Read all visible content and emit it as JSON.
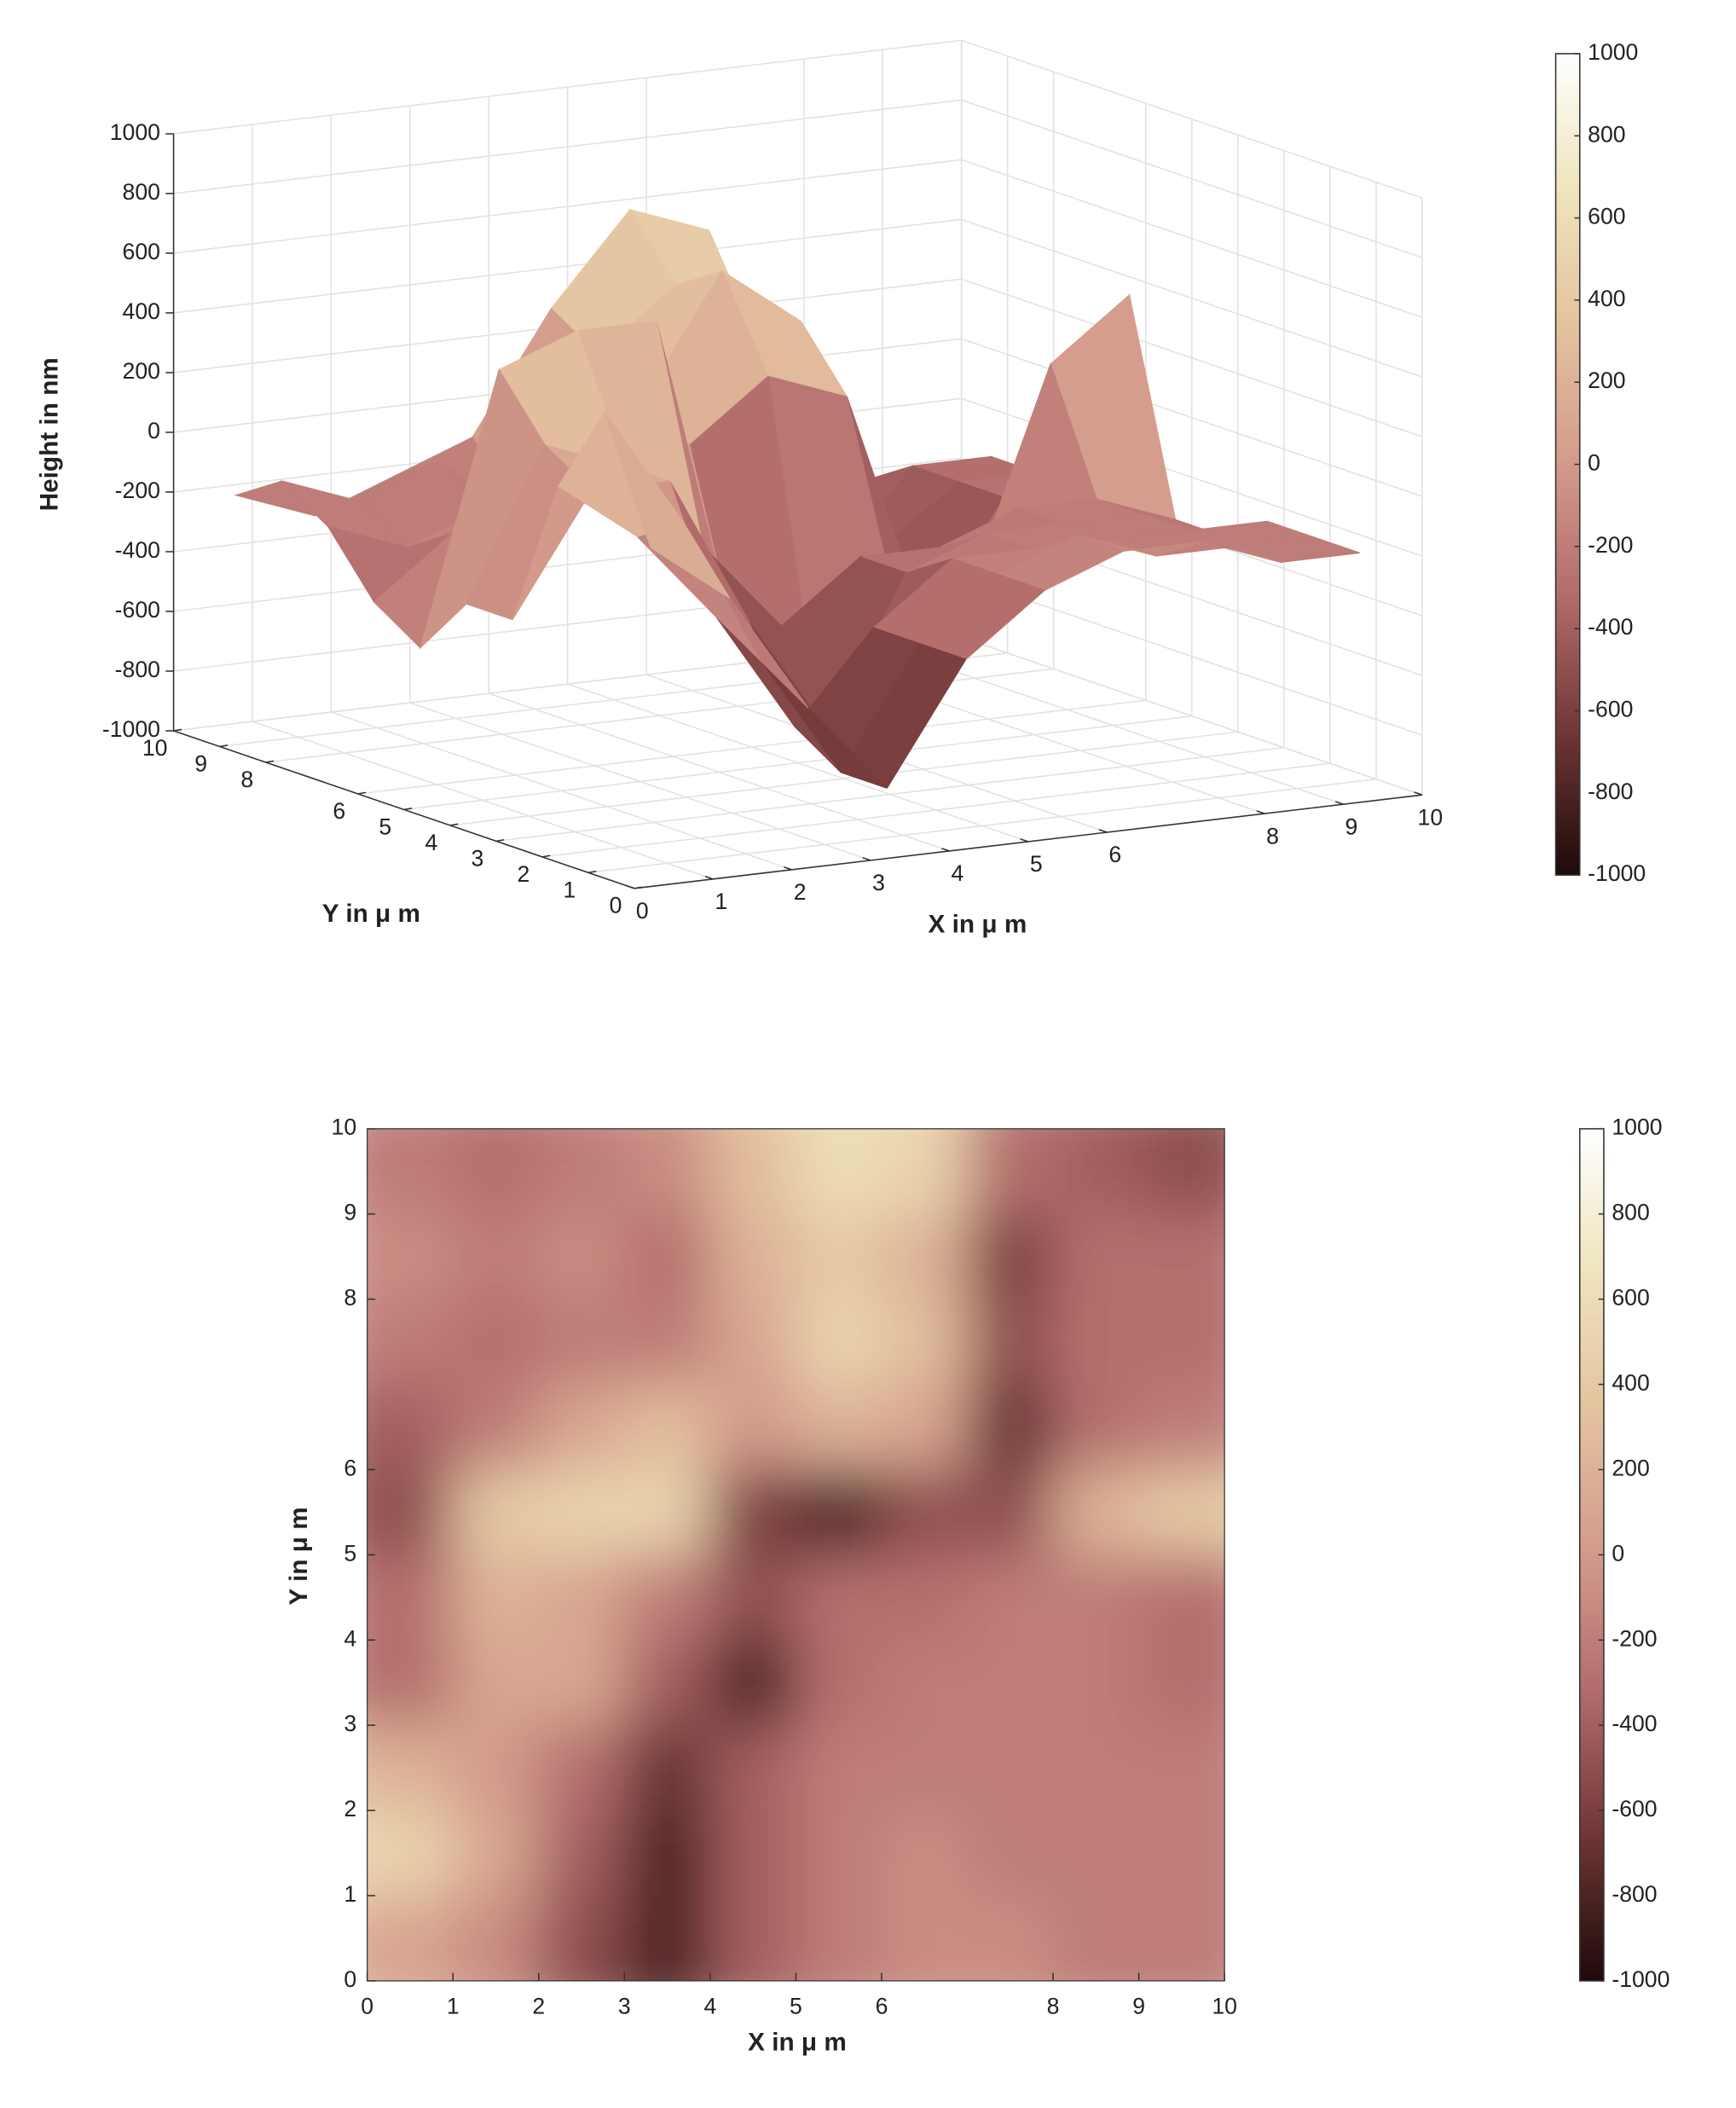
{
  "chart_data": [
    {
      "type": "surface",
      "zlabel": "Height in nm",
      "ylabel": "Y in μ m",
      "xlabel": "X in μ m",
      "x": [
        0.5,
        1.5,
        2.5,
        3.5,
        4.5,
        5.5,
        6.5,
        7.5,
        8.5,
        9.5
      ],
      "y": [
        0.5,
        1.5,
        2.5,
        3.5,
        4.5,
        5.5,
        6.5,
        7.5,
        8.5,
        9.5
      ],
      "z": [
        [
          100,
          -100,
          -500,
          -800,
          -400,
          -200,
          -100,
          -100,
          -200,
          -200
        ],
        [
          500,
          100,
          -400,
          -800,
          -400,
          -200,
          -100,
          -200,
          -200,
          -200
        ],
        [
          200,
          0,
          -300,
          -700,
          -400,
          -200,
          -200,
          -200,
          -200,
          -200
        ],
        [
          -300,
          100,
          100,
          -400,
          -800,
          -300,
          -200,
          -200,
          -200,
          -300
        ],
        [
          -300,
          200,
          100,
          -200,
          -500,
          -300,
          -300,
          -200,
          -200,
          -300
        ],
        [
          -500,
          400,
          500,
          500,
          -600,
          -800,
          -500,
          -500,
          200,
          400
        ],
        [
          -400,
          -200,
          100,
          300,
          0,
          200,
          100,
          -700,
          -300,
          -200
        ],
        [
          -200,
          -300,
          -200,
          -200,
          100,
          500,
          300,
          -500,
          -300,
          -300
        ],
        [
          -100,
          -200,
          -100,
          -300,
          200,
          400,
          200,
          -600,
          -300,
          -300
        ],
        [
          -200,
          -300,
          -200,
          -100,
          300,
          600,
          500,
          -300,
          -400,
          -500
        ]
      ],
      "xlim": [
        0,
        10
      ],
      "ylim": [
        0,
        10
      ],
      "zlim": [
        -1000,
        1000
      ],
      "xticks": [
        0,
        1,
        2,
        3,
        4,
        5,
        6,
        8,
        9,
        10
      ],
      "yticks": [
        0,
        1,
        2,
        3,
        4,
        5,
        6,
        8,
        9,
        10
      ],
      "zticks": [
        -1000,
        -800,
        -600,
        -400,
        -200,
        0,
        200,
        400,
        600,
        800,
        1000
      ],
      "clim": [
        -1000,
        1000
      ],
      "cticks": [
        -1000,
        -800,
        -600,
        -400,
        -200,
        0,
        200,
        400,
        600,
        800,
        1000
      ],
      "colors": [
        "#1e0a0a",
        "#6e3434",
        "#b06a6a",
        "#d39a8c",
        "#e4c29e",
        "#efe4bb",
        "#ffffff"
      ],
      "grid": true
    },
    {
      "type": "heatmap",
      "xlabel": "X in μ m",
      "ylabel": "Y in μ m",
      "x": [
        0.5,
        1.5,
        2.5,
        3.5,
        4.5,
        5.5,
        6.5,
        7.5,
        8.5,
        9.5
      ],
      "y": [
        0.5,
        1.5,
        2.5,
        3.5,
        4.5,
        5.5,
        6.5,
        7.5,
        8.5,
        9.5
      ],
      "z": [
        [
          100,
          -100,
          -500,
          -800,
          -400,
          -200,
          -100,
          -100,
          -200,
          -200
        ],
        [
          500,
          100,
          -400,
          -800,
          -400,
          -200,
          -100,
          -200,
          -200,
          -200
        ],
        [
          200,
          0,
          -300,
          -700,
          -400,
          -200,
          -200,
          -200,
          -200,
          -200
        ],
        [
          -300,
          100,
          100,
          -400,
          -800,
          -300,
          -200,
          -200,
          -200,
          -300
        ],
        [
          -300,
          200,
          100,
          -200,
          -500,
          -300,
          -300,
          -200,
          -200,
          -300
        ],
        [
          -500,
          400,
          500,
          500,
          -600,
          -800,
          -500,
          -500,
          200,
          400
        ],
        [
          -400,
          -200,
          100,
          300,
          0,
          200,
          100,
          -700,
          -300,
          -200
        ],
        [
          -200,
          -300,
          -200,
          -200,
          100,
          500,
          300,
          -500,
          -300,
          -300
        ],
        [
          -100,
          -200,
          -100,
          -300,
          200,
          400,
          200,
          -600,
          -300,
          -300
        ],
        [
          -200,
          -300,
          -200,
          -100,
          300,
          600,
          500,
          -300,
          -400,
          -500
        ]
      ],
      "xlim": [
        0,
        10
      ],
      "ylim": [
        0,
        10
      ],
      "xticks": [
        0,
        1,
        2,
        3,
        4,
        5,
        6,
        8,
        9,
        10
      ],
      "yticks": [
        0,
        1,
        2,
        3,
        4,
        5,
        6,
        8,
        9,
        10
      ],
      "clim": [
        -1000,
        1000
      ],
      "cticks": [
        -1000,
        -800,
        -600,
        -400,
        -200,
        0,
        200,
        400,
        600,
        800,
        1000
      ],
      "colors": [
        "#1e0a0a",
        "#6e3434",
        "#b06a6a",
        "#d39a8c",
        "#e4c29e",
        "#efe4bb",
        "#ffffff"
      ]
    }
  ]
}
